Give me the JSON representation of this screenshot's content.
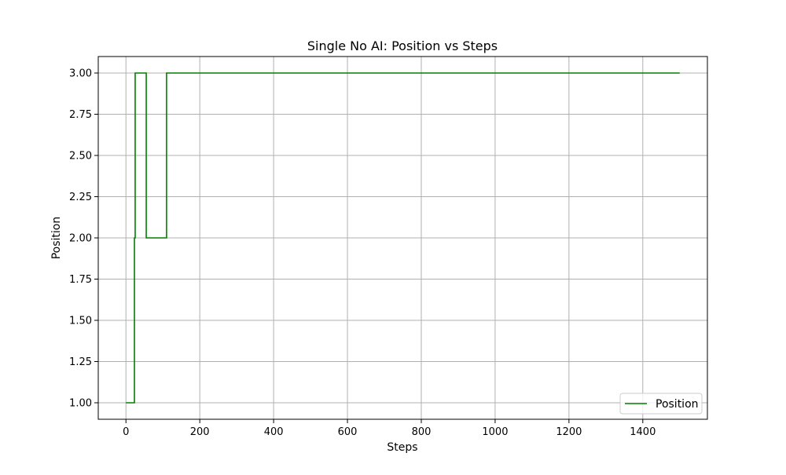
{
  "chart_data": {
    "type": "line",
    "title": "Single No AI: Position vs Steps",
    "xlabel": "Steps",
    "ylabel": "Position",
    "xlim": [
      -75,
      1575
    ],
    "ylim": [
      0.9,
      3.1
    ],
    "xticks": [
      0,
      200,
      400,
      600,
      800,
      1000,
      1200,
      1400
    ],
    "yticks": [
      1.0,
      1.25,
      1.5,
      1.75,
      2.0,
      2.25,
      2.5,
      2.75,
      3.0
    ],
    "xtick_labels": [
      "0",
      "200",
      "400",
      "600",
      "800",
      "1000",
      "1200",
      "1400"
    ],
    "ytick_labels": [
      "1.00",
      "1.25",
      "1.50",
      "1.75",
      "2.00",
      "2.25",
      "2.50",
      "2.75",
      "3.00"
    ],
    "grid": true,
    "legend_position": "lower-right",
    "series": [
      {
        "name": "Position",
        "color": "#008000",
        "step": true,
        "x": [
          0,
          23,
          25,
          55,
          110,
          1500
        ],
        "y": [
          1,
          2,
          3,
          2,
          3,
          3
        ]
      }
    ]
  }
}
